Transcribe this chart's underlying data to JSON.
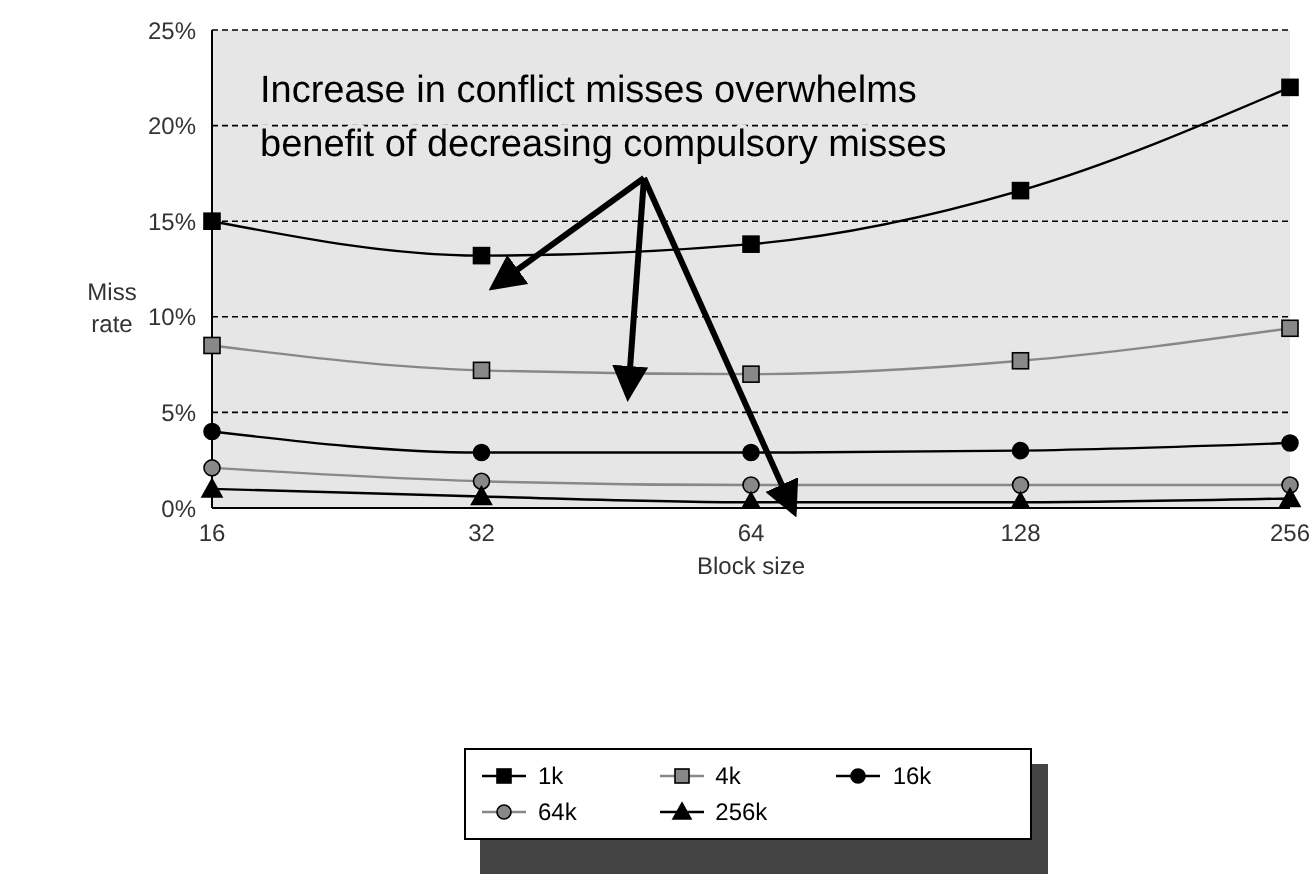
{
  "chart_data": {
    "type": "line",
    "xlabel": "Block size",
    "ylabel": "Miss rate",
    "categories": [
      "16",
      "32",
      "64",
      "128",
      "256"
    ],
    "series": [
      {
        "name": "1k",
        "color": "#000000",
        "marker": "square",
        "values": [
          15.0,
          13.2,
          13.8,
          16.6,
          22.0
        ]
      },
      {
        "name": "4k",
        "color": "#888888",
        "marker": "square",
        "values": [
          8.5,
          7.2,
          7.0,
          7.7,
          9.4
        ]
      },
      {
        "name": "16k",
        "color": "#000000",
        "marker": "circle",
        "values": [
          4.0,
          2.9,
          2.9,
          3.0,
          3.4
        ]
      },
      {
        "name": "64k",
        "color": "#888888",
        "marker": "circle",
        "values": [
          2.1,
          1.4,
          1.2,
          1.2,
          1.2
        ]
      },
      {
        "name": "256k",
        "color": "#000000",
        "marker": "triangle",
        "values": [
          1.0,
          0.6,
          0.3,
          0.3,
          0.5
        ]
      }
    ],
    "ylim": [
      0,
      25
    ],
    "yticks": [
      {
        "value": 0,
        "label": "0%"
      },
      {
        "value": 5,
        "label": "5%"
      },
      {
        "value": 10,
        "label": "10%"
      },
      {
        "value": 15,
        "label": "15%"
      },
      {
        "value": 20,
        "label": "20%"
      },
      {
        "value": 25,
        "label": "25%"
      }
    ],
    "grid": "y",
    "legend": "bottom",
    "annotations": [
      {
        "text": "Increase in conflict misses overwhelms benefit of decreasing compulsory misses",
        "x": "32",
        "y": 13.2
      }
    ]
  }
}
